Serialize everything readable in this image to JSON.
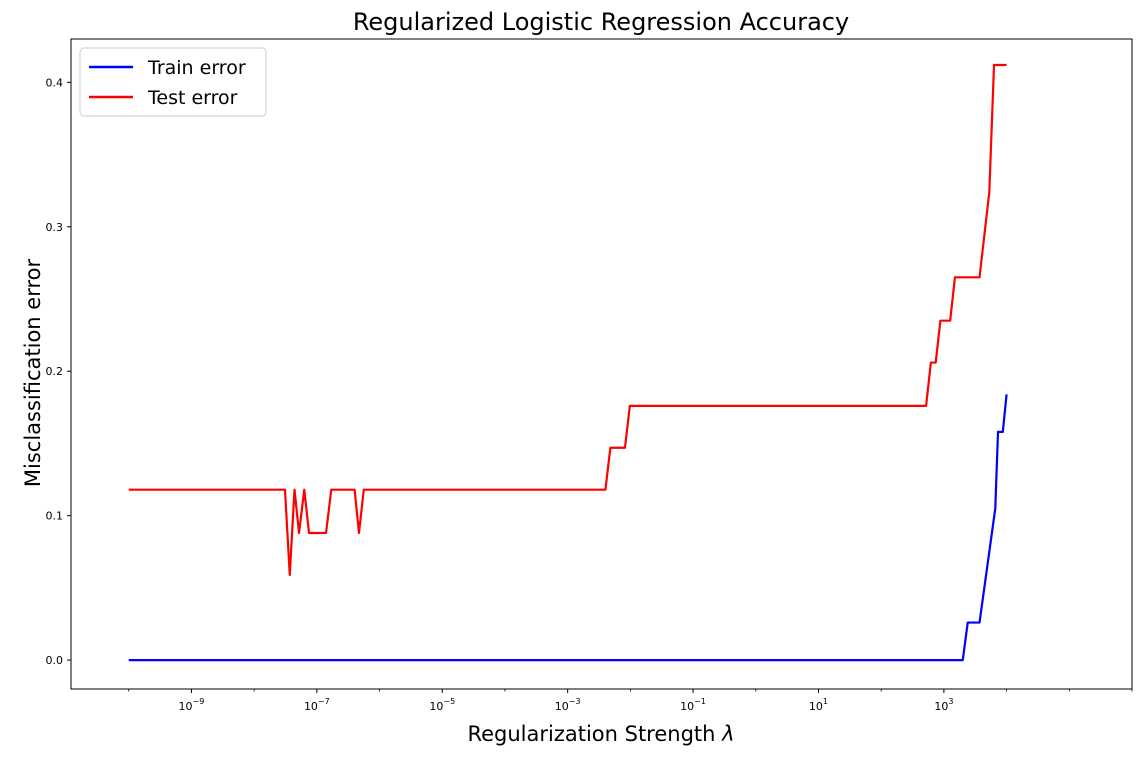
{
  "chart_data": {
    "type": "line",
    "title": "Regularized Logistic Regression Accuracy",
    "xlabel_text": "Regularization Strength ",
    "xlabel_symbol": "λ",
    "ylabel": "Misclassification error",
    "xscale": "log",
    "xlim": [
      1.2e-11,
      1000000.0
    ],
    "ylim": [
      -0.02,
      0.43
    ],
    "grid": false,
    "legend_position": "top-left",
    "x_ticks": [
      {
        "base": "10",
        "exp": "−9",
        "value": 1e-09
      },
      {
        "base": "10",
        "exp": "−7",
        "value": 1e-07
      },
      {
        "base": "10",
        "exp": "−5",
        "value": 1e-05
      },
      {
        "base": "10",
        "exp": "−3",
        "value": 0.001
      },
      {
        "base": "10",
        "exp": "−1",
        "value": 0.1
      },
      {
        "base": "10",
        "exp": "1",
        "value": 10
      },
      {
        "base": "10",
        "exp": "3",
        "value": 1000
      }
    ],
    "y_ticks": [
      {
        "label": "0.0",
        "value": 0.0
      },
      {
        "label": "0.1",
        "value": 0.1
      },
      {
        "label": "0.2",
        "value": 0.2
      },
      {
        "label": "0.3",
        "value": 0.3
      },
      {
        "label": "0.4",
        "value": 0.4
      }
    ],
    "series": [
      {
        "name": "Train error",
        "color": "#0000ff",
        "points": [
          [
            1e-10,
            0.0
          ],
          [
            2000.0,
            0.0
          ],
          [
            2400.0,
            0.026
          ],
          [
            3700.0,
            0.026
          ],
          [
            6600.0,
            0.105
          ],
          [
            7300.0,
            0.158
          ],
          [
            8700.0,
            0.158
          ],
          [
            10000.0,
            0.184
          ]
        ]
      },
      {
        "name": "Test error",
        "color": "#ff0000",
        "points": [
          [
            1e-10,
            0.118
          ],
          [
            3.1e-08,
            0.118
          ],
          [
            3.7e-08,
            0.059
          ],
          [
            4.4e-08,
            0.118
          ],
          [
            5.2e-08,
            0.088
          ],
          [
            6.3e-08,
            0.118
          ],
          [
            7.5e-08,
            0.088
          ],
          [
            1.4e-07,
            0.088
          ],
          [
            1.7e-07,
            0.118
          ],
          [
            4e-07,
            0.118
          ],
          [
            4.7e-07,
            0.088
          ],
          [
            5.6e-07,
            0.118
          ],
          [
            0.004,
            0.118
          ],
          [
            0.0048,
            0.147
          ],
          [
            0.0082,
            0.147
          ],
          [
            0.0098,
            0.176
          ],
          [
            520.0,
            0.176
          ],
          [
            620.0,
            0.206
          ],
          [
            740.0,
            0.206
          ],
          [
            880.0,
            0.235
          ],
          [
            1260.0,
            0.235
          ],
          [
            1500.0,
            0.265
          ],
          [
            3700.0,
            0.265
          ],
          [
            5300.0,
            0.324
          ],
          [
            6300.0,
            0.412
          ],
          [
            10000.0,
            0.412
          ]
        ]
      }
    ]
  }
}
